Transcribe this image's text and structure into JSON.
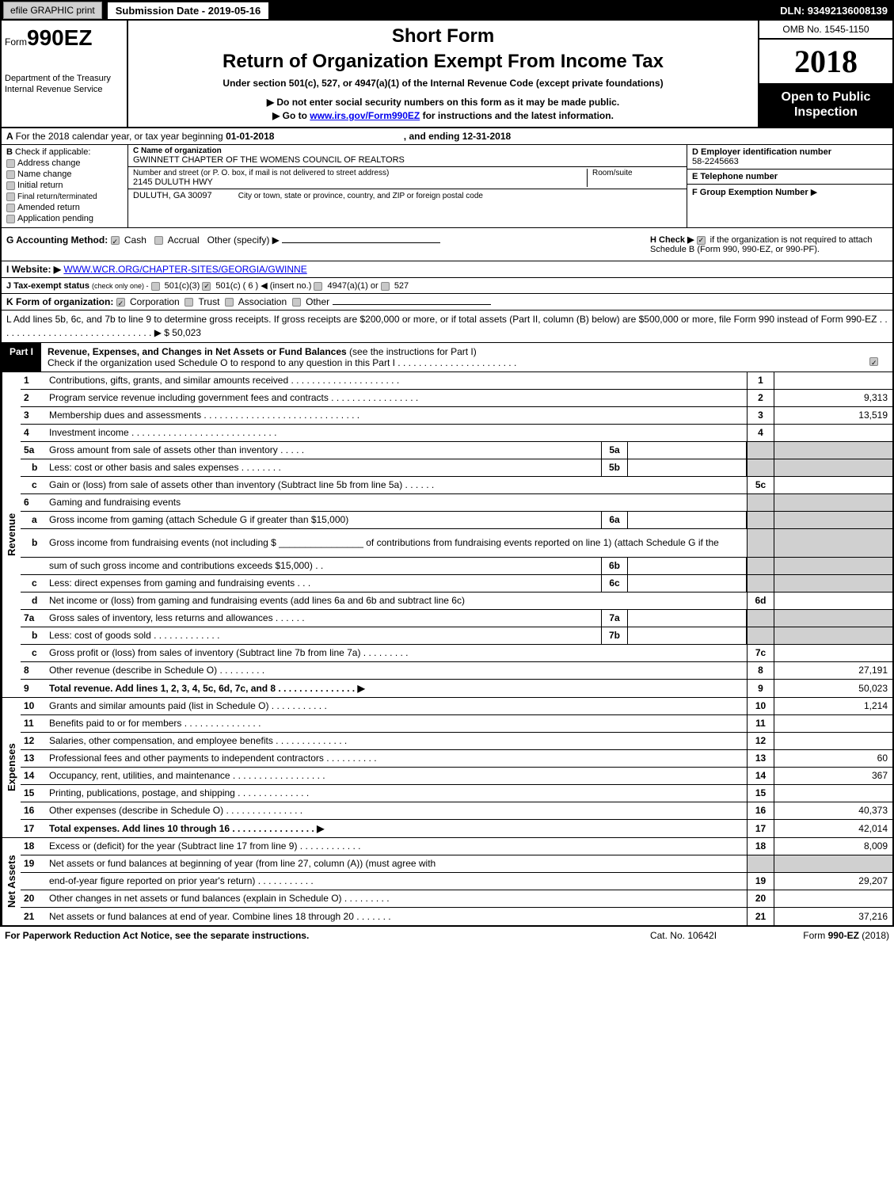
{
  "topbar": {
    "efile": "efile GRAPHIC print",
    "submission": "Submission Date - 2019-05-16",
    "dln": "DLN: 93492136008139"
  },
  "header": {
    "form_prefix": "Form",
    "form_num": "990EZ",
    "dept1": "Department of the Treasury",
    "dept2": "Internal Revenue Service",
    "short": "Short Form",
    "title": "Return of Organization Exempt From Income Tax",
    "under": "Under section 501(c), 527, or 4947(a)(1) of the Internal Revenue Code (except private foundations)",
    "note1_pre": "▶ Do not enter social security numbers on this form as it may be made public.",
    "note2_pre": "▶ Go to ",
    "note2_link": "www.irs.gov/Form990EZ",
    "note2_post": " for instructions and the latest information.",
    "omb": "OMB No. 1545-1150",
    "year": "2018",
    "open1": "Open to Public",
    "open2": "Inspection"
  },
  "rowA": {
    "text_pre": "For the 2018 calendar year, or tax year beginning ",
    "begin": "01-01-2018",
    "mid": ", and ending ",
    "end": "12-31-2018"
  },
  "colB": {
    "title": "Check if applicable:",
    "opts": [
      "Address change",
      "Name change",
      "Initial return",
      "Final return/terminated",
      "Amended return",
      "Application pending"
    ]
  },
  "colC": {
    "name_lbl": "C Name of organization",
    "name": "GWINNETT CHAPTER OF THE WOMENS COUNCIL OF REALTORS",
    "addr_lbl": "Number and street (or P. O. box, if mail is not delivered to street address)",
    "addr": "2145 DULUTH HWY",
    "room_lbl": "Room/suite",
    "city": "DULUTH, GA  30097",
    "city_lbl": "City or town, state or province, country, and ZIP or foreign postal code"
  },
  "colD": {
    "ein_lbl": "D Employer identification number",
    "ein": "58-2245663",
    "tel_lbl": "E Telephone number",
    "grp_lbl": "F Group Exemption Number",
    "grp_arrow": "▶"
  },
  "rowG": {
    "g": "G Accounting Method:",
    "cash": "Cash",
    "accrual": "Accrual",
    "other": "Other (specify) ▶",
    "h_pre": "H  Check ▶",
    "h_txt": "  if the organization is not required to attach Schedule B (Form 990, 990-EZ, or 990-PF)."
  },
  "rowI": {
    "lbl": "I Website: ▶",
    "url": "WWW.WCR.ORG/CHAPTER-SITES/GEORGIA/GWINNE"
  },
  "rowJ": {
    "lbl": "J Tax-exempt status",
    "sub": "(check only one) -",
    "o1": "501(c)(3)",
    "o2": "501(c) ( 6 ) ◀ (insert no.)",
    "o3": "4947(a)(1) or",
    "o4": "527"
  },
  "rowK": {
    "lbl": "K Form of organization:",
    "o1": "Corporation",
    "o2": "Trust",
    "o3": "Association",
    "o4": "Other"
  },
  "rowL": {
    "txt": "L Add lines 5b, 6c, and 7b to line 9 to determine gross receipts. If gross receipts are $200,000 or more, or if total assets (Part II, column (B) below) are $500,000 or more, file Form 990 instead of Form 990-EZ  .  .  .  .  .  .  .  .  .  .  .  .  .  .  .  .  .  .  .  .  .  .  .  .  .  .  .  .  .  . ▶ $ 50,023"
  },
  "part1": {
    "tag": "Part I",
    "desc_bold": "Revenue, Expenses, and Changes in Net Assets or Fund Balances",
    "desc_rest": " (see the instructions for Part I)",
    "check": "Check if the organization used Schedule O to respond to any question in this Part I .  .  .  .  .  .  .  .  .  .  .  .  .  .  .  .  .  .  .  .  .  .  ."
  },
  "sections": {
    "revenue": "Revenue",
    "expenses": "Expenses",
    "net": "Net Assets"
  },
  "lines": [
    {
      "n": "1",
      "t": "Contributions, gifts, grants, and similar amounts received  .  .  .  .  .  .  .  .  .  .  .  .  .  .  .  .  .  .  .  .  .",
      "rn": "1",
      "rv": ""
    },
    {
      "n": "2",
      "t": "Program service revenue including government fees and contracts  .  .  .  .  .  .  .  .  .  .  .  .  .  .  .  .  .",
      "rn": "2",
      "rv": "9,313"
    },
    {
      "n": "3",
      "t": "Membership dues and assessments  .  .  .  .  .  .  .  .  .  .  .  .  .  .  .  .  .  .  .  .  .  .  .  .  .  .  .  .  .  .",
      "rn": "3",
      "rv": "13,519"
    },
    {
      "n": "4",
      "t": "Investment income  .  .  .  .  .  .  .  .  .  .  .  .  .  .  .  .  .  .  .  .  .  .  .  .  .  .  .  .",
      "rn": "4",
      "rv": ""
    },
    {
      "n": "5a",
      "t": "Gross amount from sale of assets other than inventory  .  .  .  .  .",
      "mn": "5a",
      "shade": true
    },
    {
      "n": "b",
      "sub": true,
      "t": "Less: cost or other basis and sales expenses  .  .  .  .  .  .  .  .",
      "mn": "5b",
      "shade": true
    },
    {
      "n": "c",
      "sub": true,
      "t": "Gain or (loss) from sale of assets other than inventory (Subtract line 5b from line 5a)       .  .  .  .  .  .",
      "rn": "5c",
      "rv": ""
    },
    {
      "n": "6",
      "t": "Gaming and fundraising events",
      "shade": true
    },
    {
      "n": "a",
      "sub": true,
      "t": "Gross income from gaming (attach Schedule G if greater than $15,000)",
      "mn": "6a",
      "shade": true
    },
    {
      "n": "b",
      "sub": true,
      "t": "Gross income from fundraising events (not including $ ________________ of contributions from fundraising events reported on line 1) (attach Schedule G if the",
      "shade": true,
      "tall": true
    },
    {
      "n": "",
      "t": "sum of such gross income and contributions exceeds $15,000)       .  .",
      "mn": "6b",
      "shade": true
    },
    {
      "n": "c",
      "sub": true,
      "t": "Less: direct expenses from gaming and fundraising events       .  .  .",
      "mn": "6c",
      "shade": true
    },
    {
      "n": "d",
      "sub": true,
      "t": "Net income or (loss) from gaming and fundraising events (add lines 6a and 6b and subtract line 6c)",
      "rn": "6d",
      "rv": ""
    },
    {
      "n": "7a",
      "t": "Gross sales of inventory, less returns and allowances       .  .  .  .  .  .",
      "mn": "7a",
      "shade": true
    },
    {
      "n": "b",
      "sub": true,
      "t": "Less: cost of goods sold          .  .  .  .  .  .  .  .  .  .  .  .  .",
      "mn": "7b",
      "shade": true
    },
    {
      "n": "c",
      "sub": true,
      "t": "Gross profit or (loss) from sales of inventory (Subtract line 7b from line 7a)       .  .  .  .  .  .  .  .  .",
      "rn": "7c",
      "rv": ""
    },
    {
      "n": "8",
      "t": "Other revenue (describe in Schedule O)          .  .  .  .  .  .  .  .  .",
      "rn": "8",
      "rv": "27,191"
    },
    {
      "n": "9",
      "t": "Total revenue. Add lines 1, 2, 3, 4, 5c, 6d, 7c, and 8       .  .  .  .  .  .  .  .  .  .  .  .  .  .  . ▶",
      "bold": true,
      "rn": "9",
      "rv": "50,023"
    }
  ],
  "exp_lines": [
    {
      "n": "10",
      "t": "Grants and similar amounts paid (list in Schedule O)         .  .  .  .  .  .  .  .  .  .  .",
      "rn": "10",
      "rv": "1,214"
    },
    {
      "n": "11",
      "t": "Benefits paid to or for members          .  .  .  .  .  .  .  .  .  .  .  .  .  .  .",
      "rn": "11",
      "rv": ""
    },
    {
      "n": "12",
      "t": "Salaries, other compensation, and employee benefits        .  .  .  .  .  .  .  .  .  .  .  .  .  .",
      "rn": "12",
      "rv": ""
    },
    {
      "n": "13",
      "t": "Professional fees and other payments to independent contractors        .  .  .  .  .  .  .  .  .  .",
      "rn": "13",
      "rv": "60"
    },
    {
      "n": "14",
      "t": "Occupancy, rent, utilities, and maintenance        .  .  .  .  .  .  .  .  .  .  .  .  .  .  .  .  .  .",
      "rn": "14",
      "rv": "367"
    },
    {
      "n": "15",
      "t": "Printing, publications, postage, and shipping          .  .  .  .  .  .  .  .  .  .  .  .  .  .",
      "rn": "15",
      "rv": ""
    },
    {
      "n": "16",
      "t": "Other expenses (describe in Schedule O)          .  .  .  .  .  .  .  .  .  .  .  .  .  .  .",
      "rn": "16",
      "rv": "40,373"
    },
    {
      "n": "17",
      "t": "Total expenses. Add lines 10 through 16       .  .  .  .  .  .  .  .  .  .  .  .  .  .  .  . ▶",
      "bold": true,
      "rn": "17",
      "rv": "42,014"
    }
  ],
  "net_lines": [
    {
      "n": "18",
      "t": "Excess or (deficit) for the year (Subtract line 17 from line 9)       .  .  .  .  .  .  .  .  .  .  .  .",
      "rn": "18",
      "rv": "8,009"
    },
    {
      "n": "19",
      "t": "Net assets or fund balances at beginning of year (from line 27, column (A)) (must agree with",
      "shade": true
    },
    {
      "n": "",
      "t": "end-of-year figure reported on prior year's return)          .  .  .  .  .  .  .  .  .  .  .",
      "rn": "19",
      "rv": "29,207"
    },
    {
      "n": "20",
      "t": "Other changes in net assets or fund balances (explain in Schedule O)        .  .  .  .  .  .  .  .  .",
      "rn": "20",
      "rv": ""
    },
    {
      "n": "21",
      "t": "Net assets or fund balances at end of year. Combine lines 18 through 20       .  .  .  .  .  .  .",
      "rn": "21",
      "rv": "37,216"
    }
  ],
  "footer": {
    "left": "For Paperwork Reduction Act Notice, see the separate instructions.",
    "mid": "Cat. No. 10642I",
    "right": "Form 990-EZ (2018)"
  }
}
